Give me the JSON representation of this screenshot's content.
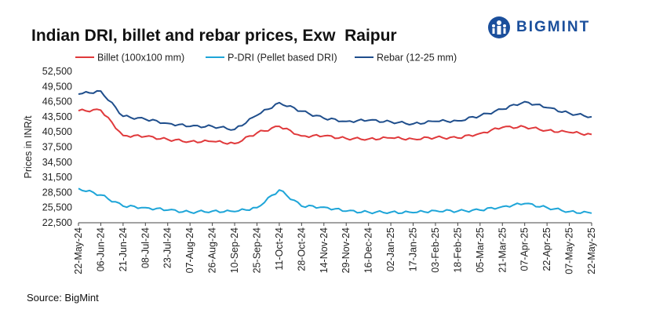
{
  "title": "Indian DRI, billet and rebar prices, Exw  Raipur",
  "source": "Source: BigMint",
  "logo_text": "BIGMINT",
  "colors": {
    "billet": "#e0393b",
    "pdri": "#1ea5d8",
    "rebar": "#1f4e8c",
    "logo": "#1b4f9c"
  },
  "chart_data": {
    "type": "line",
    "title": "Indian DRI, billet and rebar prices, Exw  Raipur",
    "xlabel": "",
    "ylabel": "Prices in INR/t",
    "ylim": [
      22500,
      52500
    ],
    "yticks": [
      "52,500",
      "49,500",
      "46,500",
      "43,500",
      "40,500",
      "37,500",
      "34,500",
      "31,500",
      "28,500",
      "25,500",
      "22,500"
    ],
    "categories": [
      "22-May-24",
      "06-Jun-24",
      "21-Jun-24",
      "08-Jul-24",
      "23-Jul-24",
      "07-Aug-24",
      "26-Aug-24",
      "10-Sep-24",
      "25-Sep-24",
      "11-Oct-24",
      "28-Oct-24",
      "14-Nov-24",
      "29-Nov-24",
      "16-Dec-24",
      "02-Jan-25",
      "17-Jan-25",
      "03-Feb-25",
      "18-Feb-25",
      "05-Mar-25",
      "21-Mar-25",
      "07-Apr-25",
      "22-Apr-25",
      "07-May-25",
      "22-May-25"
    ],
    "legend_position": "top",
    "grid": false,
    "series": [
      {
        "name": "Billet (100x100 mm)",
        "color": "#e0393b",
        "values": [
          44700,
          44800,
          39800,
          39600,
          39000,
          38600,
          38600,
          38200,
          40300,
          41600,
          39700,
          39700,
          39200,
          39100,
          39300,
          39100,
          39400,
          39300,
          40200,
          41400,
          41500,
          40800,
          40400,
          40000
        ]
      },
      {
        "name": "P-DRI (Pellet based DRI)",
        "color": "#1ea5d8",
        "values": [
          29300,
          28000,
          25800,
          25500,
          25000,
          24600,
          24800,
          24700,
          25500,
          29000,
          25800,
          25600,
          24800,
          24600,
          24600,
          24500,
          24900,
          24800,
          25000,
          25700,
          26300,
          25500,
          24700,
          24400
        ]
      },
      {
        "name": "Rebar (12-25 mm)",
        "color": "#1f4e8c",
        "values": [
          48000,
          48600,
          43600,
          43000,
          42200,
          41600,
          41600,
          41000,
          43800,
          46300,
          44600,
          43200,
          42600,
          42800,
          42500,
          42100,
          42600,
          42700,
          43700,
          45000,
          46500,
          45300,
          44200,
          43500
        ]
      }
    ]
  }
}
